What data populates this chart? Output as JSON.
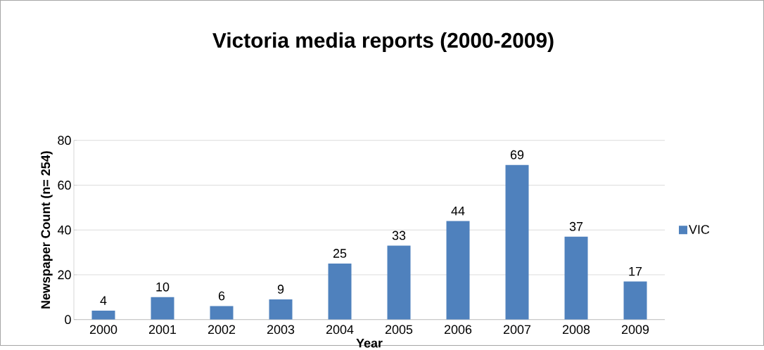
{
  "chart_data": {
    "type": "bar",
    "title": "Victoria media reports (2000-2009)",
    "xlabel": "Year",
    "ylabel": "Newspaper Count (n= 254)",
    "categories": [
      "2000",
      "2001",
      "2002",
      "2003",
      "2004",
      "2005",
      "2006",
      "2007",
      "2008",
      "2009"
    ],
    "series": [
      {
        "name": "VIC",
        "color": "#4f81bd",
        "values": [
          4,
          10,
          6,
          9,
          25,
          33,
          44,
          69,
          37,
          17
        ]
      }
    ],
    "ylim": [
      0,
      80
    ],
    "yticks": [
      0,
      20,
      40,
      60,
      80
    ],
    "grid": "y",
    "legend": "right",
    "data_labels": true
  }
}
